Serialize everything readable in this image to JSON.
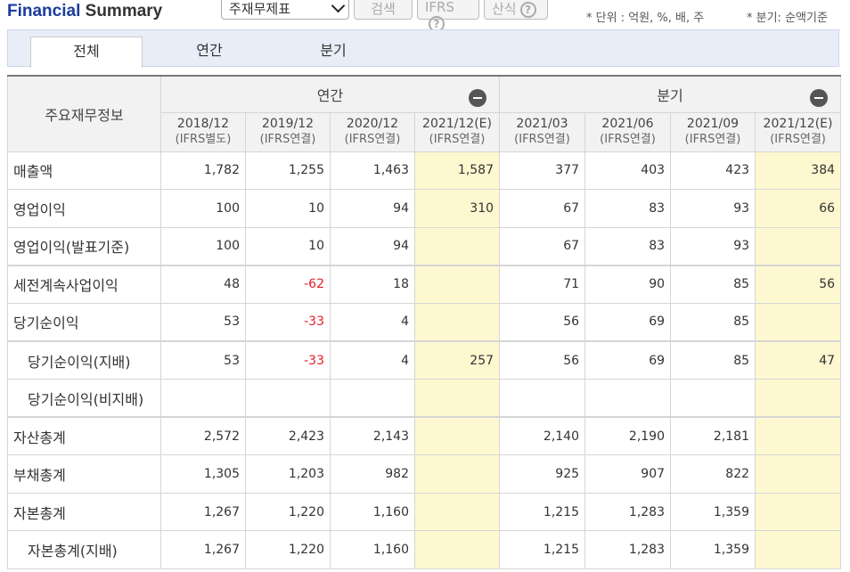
{
  "header": {
    "title_part1": "Financial",
    "title_part2": "Summary",
    "select_value": "주재무제표",
    "search_label": "검색",
    "ifrs_label": "IFRS",
    "formula_label": "산식",
    "help_icon": "?",
    "unit_note": "* 단위 : 억원, %, 배, 주",
    "quarter_note": "* 분기: 순액기준"
  },
  "tabs": [
    "전체",
    "연간",
    "분기"
  ],
  "table": {
    "main_header": "주요재무정보",
    "groups": [
      "연간",
      "분기"
    ],
    "periods": [
      {
        "date": "2018/12",
        "basis": "(IFRS별도)"
      },
      {
        "date": "2019/12",
        "basis": "(IFRS연결)"
      },
      {
        "date": "2020/12",
        "basis": "(IFRS연결)"
      },
      {
        "date": "2021/12(E)",
        "basis": "(IFRS연결)"
      },
      {
        "date": "2021/03",
        "basis": "(IFRS연결)"
      },
      {
        "date": "2021/06",
        "basis": "(IFRS연결)"
      },
      {
        "date": "2021/09",
        "basis": "(IFRS연결)"
      },
      {
        "date": "2021/12(E)",
        "basis": "(IFRS연결)"
      }
    ],
    "rows": [
      {
        "label": "매출액",
        "values": [
          "1,782",
          "1,255",
          "1,463",
          "1,587",
          "377",
          "403",
          "423",
          "384"
        ]
      },
      {
        "label": "영업이익",
        "values": [
          "100",
          "10",
          "94",
          "310",
          "67",
          "83",
          "93",
          "66"
        ]
      },
      {
        "label": "영업이익(발표기준)",
        "values": [
          "100",
          "10",
          "94",
          "",
          "67",
          "83",
          "93",
          ""
        ]
      },
      {
        "label": "세전계속사업이익",
        "values": [
          "48",
          "-62",
          "18",
          "",
          "71",
          "90",
          "85",
          "56"
        ]
      },
      {
        "label": "당기순이익",
        "values": [
          "53",
          "-33",
          "4",
          "",
          "56",
          "69",
          "85",
          ""
        ]
      },
      {
        "label": "당기순이익(지배)",
        "values": [
          "53",
          "-33",
          "4",
          "257",
          "56",
          "69",
          "85",
          "47"
        ]
      },
      {
        "label": "당기순이익(비지배)",
        "values": [
          "",
          "",
          "",
          "",
          "",
          "",
          "",
          ""
        ]
      },
      {
        "label": "자산총계",
        "values": [
          "2,572",
          "2,423",
          "2,143",
          "",
          "2,140",
          "2,190",
          "2,181",
          ""
        ]
      },
      {
        "label": "부채총계",
        "values": [
          "1,305",
          "1,203",
          "982",
          "",
          "925",
          "907",
          "822",
          ""
        ]
      },
      {
        "label": "자본총계",
        "values": [
          "1,267",
          "1,220",
          "1,160",
          "",
          "1,215",
          "1,283",
          "1,359",
          ""
        ]
      },
      {
        "label": "자본총계(지배)",
        "values": [
          "1,267",
          "1,220",
          "1,160",
          "",
          "1,215",
          "1,283",
          "1,359",
          ""
        ]
      }
    ]
  },
  "colors": {
    "highlight": "#fdf8d0",
    "negative": "#e0202a",
    "brand": "#1a3c9c"
  }
}
